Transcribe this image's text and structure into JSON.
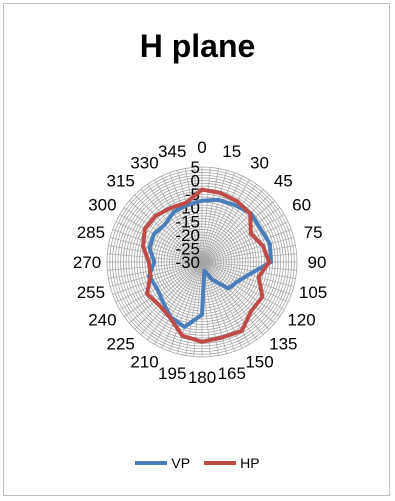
{
  "chart_data": {
    "type": "radar",
    "title": "H plane",
    "angles": [
      0,
      15,
      30,
      45,
      60,
      75,
      90,
      105,
      120,
      135,
      150,
      165,
      180,
      195,
      210,
      225,
      240,
      255,
      270,
      285,
      300,
      315,
      330,
      345
    ],
    "angle_labels": [
      "0",
      "15",
      "30",
      "45",
      "60",
      "75",
      "90",
      "105",
      "120",
      "135",
      "150",
      "165",
      "180",
      "195",
      "210",
      "225",
      "240",
      "255",
      "270",
      "285",
      "300",
      "315",
      "330",
      "345"
    ],
    "radial_range": [
      -30,
      5
    ],
    "radial_ticks": [
      "5",
      "0",
      "-5",
      "-10",
      "-15",
      "-20",
      "-25",
      "-30"
    ],
    "grid": true,
    "legend_position": "bottom",
    "series": [
      {
        "name": "VP",
        "color": "#4a7ebb",
        "values": [
          -7.4,
          -6.3,
          -5.8,
          -4.6,
          -5.2,
          -4.1,
          -4.6,
          -12.1,
          -15.2,
          -16.2,
          -22.5,
          -26.7,
          -10.6,
          -5.2,
          -6.7,
          -9.5,
          -10.8,
          -9.8,
          -12.4,
          -10.0,
          -9.5,
          -10.6,
          -8.9,
          -8.3
        ]
      },
      {
        "name": "HP",
        "color": "#be4b48",
        "values": [
          -3.3,
          -3.7,
          -4.1,
          -4.9,
          -9.2,
          -6.8,
          -5.3,
          -8.4,
          -4.3,
          -4.4,
          -0.7,
          -1.2,
          -0.6,
          -1.9,
          -6.4,
          -7.6,
          -6.6,
          -10.4,
          -10.4,
          -7.5,
          -5.7,
          -5.9,
          -7.0,
          -7.4
        ]
      }
    ]
  }
}
